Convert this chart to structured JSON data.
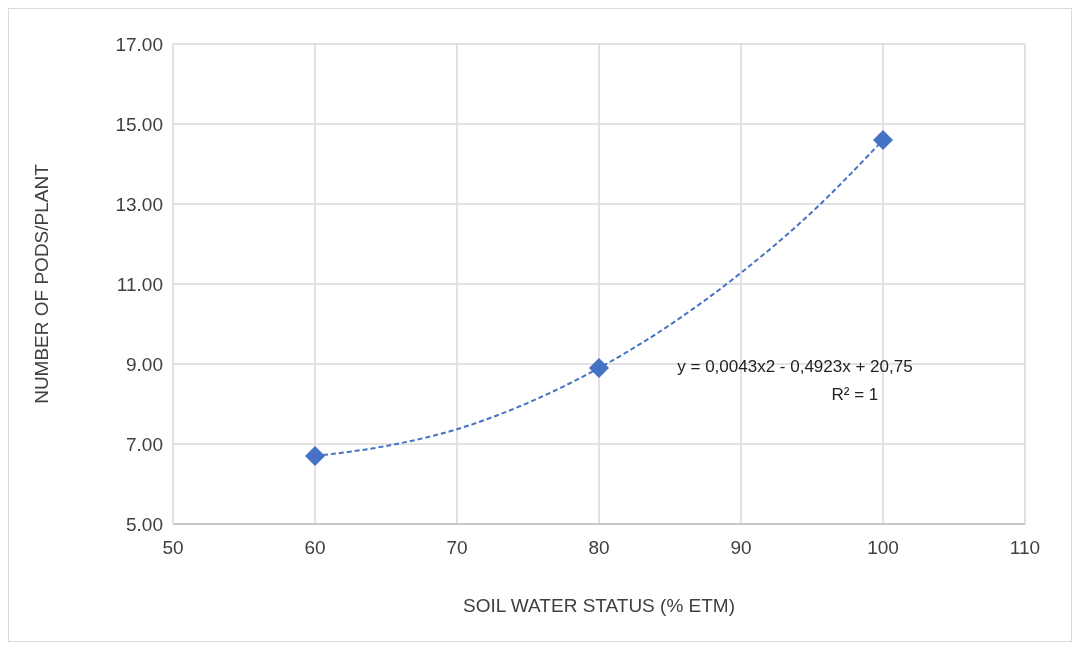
{
  "chart_data": {
    "type": "scatter",
    "xlabel": "SOIL WATER STATUS  (% ETM)",
    "ylabel": "NUMBER OF PODS/PLANT",
    "xlim": [
      50,
      110
    ],
    "xticks": [
      50,
      60,
      70,
      80,
      90,
      100,
      110
    ],
    "ylim": [
      5,
      17
    ],
    "yticks": [
      {
        "value": 5,
        "label": "5.00"
      },
      {
        "value": 7,
        "label": "7.00"
      },
      {
        "value": 9,
        "label": "9.00"
      },
      {
        "value": 11,
        "label": "11.00"
      },
      {
        "value": 13,
        "label": "13.00"
      },
      {
        "value": 15,
        "label": "15.00"
      },
      {
        "value": 17,
        "label": "17.00"
      }
    ],
    "grid": true,
    "series": [
      {
        "color": "#4472c4",
        "marker": "diamond",
        "x": [
          60,
          80,
          100
        ],
        "values": [
          6.7,
          8.9,
          14.6
        ]
      },
      {
        "type": "line",
        "color": "#4472c4",
        "marker": "none",
        "line_style": "dashed",
        "x": [
          60,
          65,
          70,
          75,
          80,
          85,
          90,
          95,
          100
        ],
        "values": [
          6.7,
          6.95,
          7.37,
          8.03,
          8.9,
          9.98,
          11.28,
          12.8,
          14.6
        ]
      }
    ],
    "annotations": [
      "y = 0,0043x2 - 0,4923x + 20,75",
      "R² = 1"
    ]
  }
}
